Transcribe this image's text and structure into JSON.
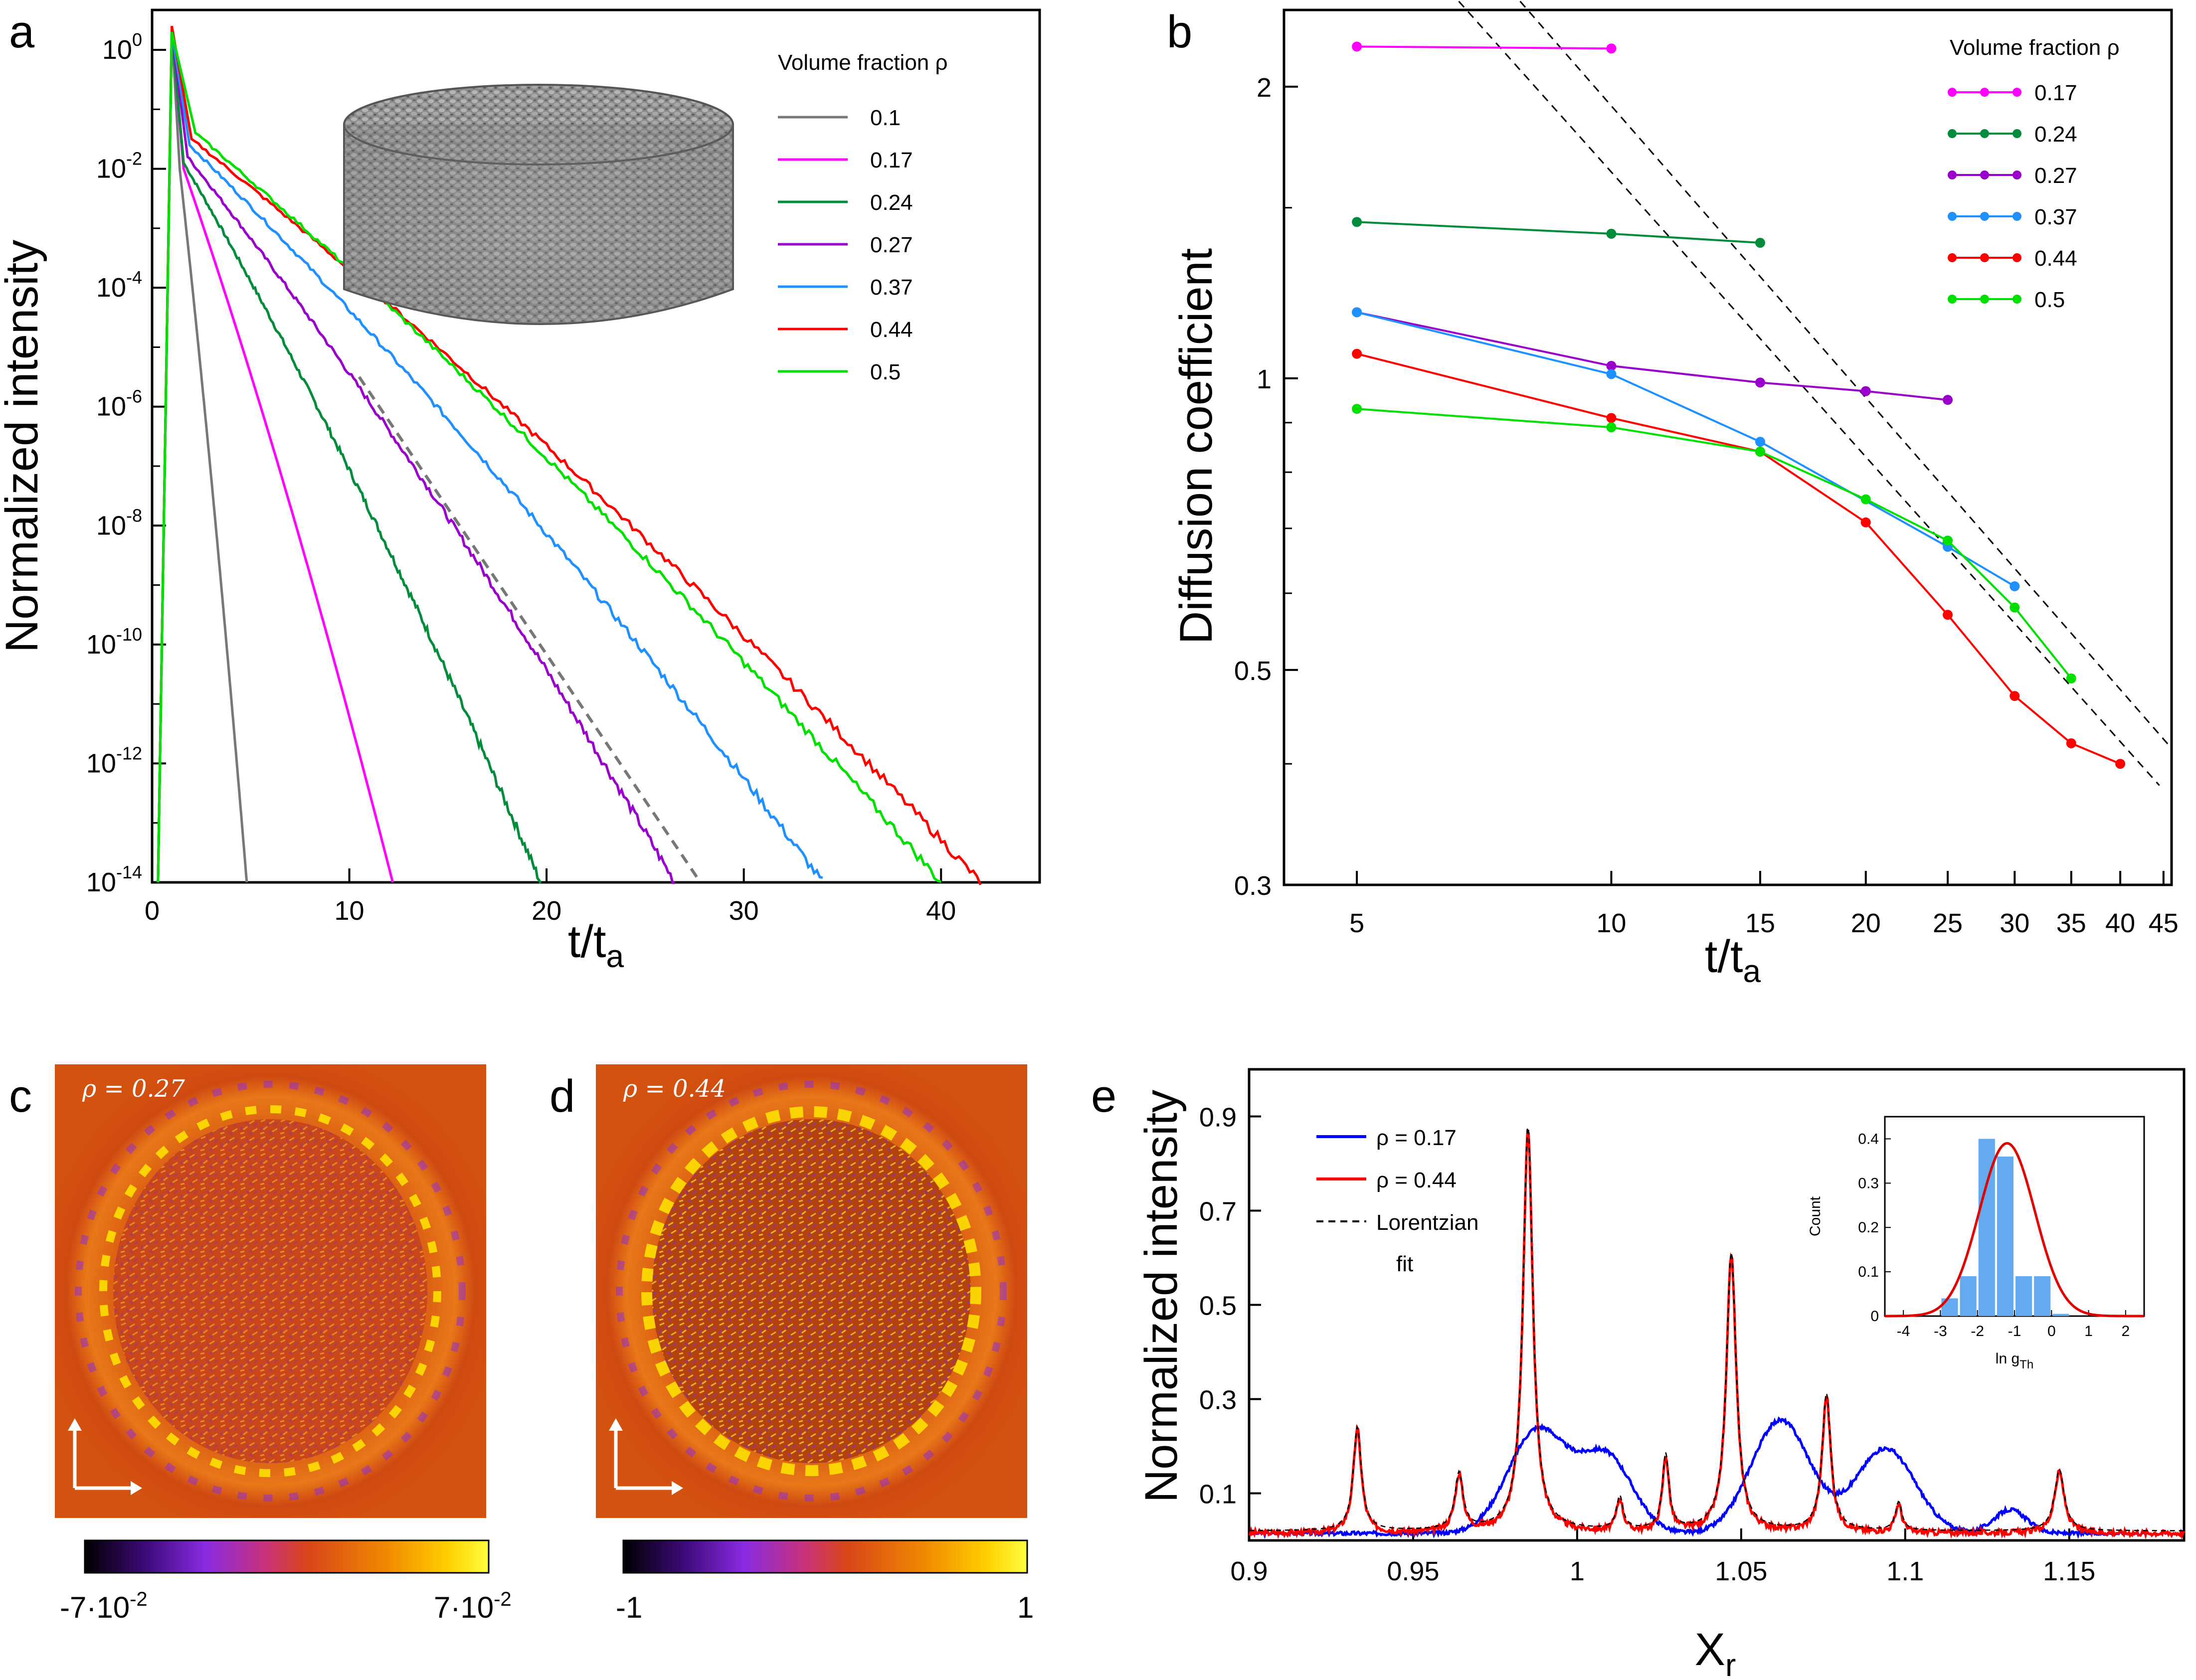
{
  "figure": {
    "panel_letters": [
      "a",
      "b",
      "c",
      "d",
      "e"
    ]
  },
  "chart_data": [
    {
      "id": "a",
      "type": "line",
      "xlabel": "t/t",
      "xlabel_sub": "a",
      "ylabel": "Normalized intensity",
      "yscale": "log",
      "xlim": [
        0,
        45
      ],
      "ylim_exp": [
        -14,
        1
      ],
      "xticks": [
        "0",
        "10",
        "20",
        "30",
        "40"
      ],
      "xtick_values": [
        0,
        10,
        20,
        30,
        40
      ],
      "ytick_exponents": [
        "0",
        "-2",
        "-4",
        "-6",
        "-8",
        "-10",
        "-12",
        "-14"
      ],
      "ytick_base": "10",
      "legend_title": "Volume fraction ρ",
      "series": [
        {
          "name": "0.1",
          "color": "#777777",
          "peak_t": 1.0,
          "peak_exp": 0.35,
          "start_t": 1.4,
          "start_exp": -2.0,
          "end_t": 4.8,
          "end_exp": -14
        },
        {
          "name": "0.17",
          "color": "#ff00ff",
          "peak_t": 1.0,
          "peak_exp": 0.3,
          "start_t": 1.6,
          "start_exp": -2.0,
          "end_t": 12.2,
          "end_exp": -14
        },
        {
          "name": "0.24",
          "color": "#008c3a",
          "peak_t": 1.0,
          "peak_exp": 0.3,
          "start_t": 1.6,
          "start_exp": -1.9,
          "end_t": 19.7,
          "end_exp": -14
        },
        {
          "name": "0.27",
          "color": "#9900cc",
          "peak_t": 1.0,
          "peak_exp": 0.3,
          "start_t": 1.8,
          "start_exp": -1.8,
          "end_t": 26.5,
          "end_exp": -14
        },
        {
          "name": "0.37",
          "color": "#1e90ff",
          "peak_t": 1.0,
          "peak_exp": 0.3,
          "start_t": 1.9,
          "start_exp": -1.6,
          "end_t": 34.0,
          "end_exp": -14
        },
        {
          "name": "0.44",
          "color": "#ff0000",
          "peak_t": 1.0,
          "peak_exp": 0.4,
          "start_t": 2.0,
          "start_exp": -1.5,
          "end_t": 42.0,
          "end_exp": -14
        },
        {
          "name": "0.5",
          "color": "#00e000",
          "peak_t": 1.0,
          "peak_exp": 0.3,
          "start_t": 2.2,
          "start_exp": -1.4,
          "end_t": 40.0,
          "end_exp": -14
        }
      ],
      "fit_line": {
        "t0": 10.5,
        "exp0": -5.5,
        "t1": 27.8,
        "exp1": -14
      }
    },
    {
      "id": "b",
      "type": "line",
      "xlabel": "t/t",
      "xlabel_sub": "a",
      "ylabel": "Diffusion coefficient",
      "xscale": "log",
      "yscale": "log",
      "xlim": [
        4.1,
        46
      ],
      "ylim": [
        0.3,
        2.4
      ],
      "xticks": [
        "5",
        "10",
        "15",
        "20",
        "25",
        "30",
        "35",
        "40",
        "45"
      ],
      "xtick_values": [
        5,
        10,
        15,
        20,
        25,
        30,
        35,
        40,
        45
      ],
      "yticks": [
        "0.3",
        "0.5",
        "1",
        "2"
      ],
      "ytick_values": [
        0.3,
        0.5,
        1,
        2
      ],
      "legend_title": "Volume fraction ρ",
      "series": [
        {
          "name": "0.17",
          "color": "#ff00ff",
          "x": [
            5,
            10
          ],
          "y": [
            2.2,
            2.19
          ]
        },
        {
          "name": "0.24",
          "color": "#008c3a",
          "x": [
            5,
            10,
            15
          ],
          "y": [
            1.45,
            1.41,
            1.38
          ]
        },
        {
          "name": "0.27",
          "color": "#9900cc",
          "x": [
            5,
            10,
            15,
            20,
            25
          ],
          "y": [
            1.17,
            1.03,
            0.99,
            0.97,
            0.95
          ]
        },
        {
          "name": "0.37",
          "color": "#1e90ff",
          "x": [
            5,
            10,
            15,
            25,
            30
          ],
          "y": [
            1.17,
            1.01,
            0.86,
            0.67,
            0.61
          ]
        },
        {
          "name": "0.44",
          "color": "#ff0000",
          "x": [
            5,
            10,
            15,
            20,
            25,
            30,
            35,
            40
          ],
          "y": [
            1.06,
            0.91,
            0.84,
            0.71,
            0.57,
            0.47,
            0.42,
            0.4
          ]
        },
        {
          "name": "0.5",
          "color": "#00e000",
          "x": [
            5,
            10,
            15,
            20,
            25,
            30,
            35
          ],
          "y": [
            0.93,
            0.89,
            0.84,
            0.75,
            0.68,
            0.58,
            0.49
          ]
        }
      ],
      "fit_lines": [
        {
          "x": [
            6.6,
            44.5
          ],
          "y": [
            2.45,
            0.38
          ]
        },
        {
          "x": [
            7.8,
            46
          ],
          "y": [
            2.45,
            0.415
          ]
        }
      ]
    },
    {
      "id": "e",
      "type": "line",
      "xlabel": "X",
      "xlabel_sub": "r",
      "ylabel": "Normalized intensity",
      "xlim": [
        0.9,
        1.185
      ],
      "ylim": [
        0,
        1.0
      ],
      "xticks": [
        "0.9",
        "0.95",
        "1",
        "1.05",
        "1.1",
        "1.15"
      ],
      "xtick_values": [
        0.9,
        0.95,
        1.0,
        1.05,
        1.1,
        1.15
      ],
      "yticks": [
        "0.1",
        "0.3",
        "0.5",
        "0.7",
        "0.9"
      ],
      "ytick_values": [
        0.1,
        0.3,
        0.5,
        0.7,
        0.9
      ],
      "legend": [
        "ρ = 0.17",
        "ρ = 0.44",
        "Lorentzian",
        "fit"
      ],
      "blue_peaks": [
        {
          "x": 0.988,
          "h": 0.22,
          "w": 0.009
        },
        {
          "x": 1.009,
          "h": 0.16,
          "w": 0.008
        },
        {
          "x": 1.062,
          "h": 0.24,
          "w": 0.009
        },
        {
          "x": 1.094,
          "h": 0.18,
          "w": 0.009
        },
        {
          "x": 1.132,
          "h": 0.05,
          "w": 0.005
        }
      ],
      "red_peaks": [
        {
          "x": 0.933,
          "h": 0.22,
          "w": 0.0015
        },
        {
          "x": 0.964,
          "h": 0.12,
          "w": 0.0015
        },
        {
          "x": 0.985,
          "h": 0.86,
          "w": 0.0018
        },
        {
          "x": 1.013,
          "h": 0.07,
          "w": 0.0012
        },
        {
          "x": 1.027,
          "h": 0.16,
          "w": 0.0012
        },
        {
          "x": 1.047,
          "h": 0.59,
          "w": 0.0018
        },
        {
          "x": 1.076,
          "h": 0.29,
          "w": 0.0016
        },
        {
          "x": 1.098,
          "h": 0.06,
          "w": 0.0012
        },
        {
          "x": 1.147,
          "h": 0.13,
          "w": 0.0018
        }
      ],
      "inset": {
        "type": "bar",
        "xlabel": "ln g",
        "xlabel_sub": "Th",
        "ylabel": "Count",
        "xlim": [
          -4.5,
          2.5
        ],
        "ylim": [
          0,
          0.45
        ],
        "xticks": [
          "-4",
          "-3",
          "-2",
          "-1",
          "0",
          "1",
          "2"
        ],
        "xtick_values": [
          -4,
          -3,
          -2,
          -1,
          0,
          1,
          2
        ],
        "yticks": [
          "0",
          "0.1",
          "0.2",
          "0.3",
          "0.4"
        ],
        "ytick_values": [
          0,
          0.1,
          0.2,
          0.3,
          0.4
        ],
        "bins_left": [
          -3,
          -2.5,
          -2,
          -1.5,
          -1,
          -0.5,
          0
        ],
        "bar_width": 0.5,
        "values": [
          0.04,
          0.09,
          0.4,
          0.36,
          0.09,
          0.09,
          0.005
        ],
        "gauss": {
          "mu": -1.2,
          "sigma": 0.75,
          "amp": 0.39
        }
      }
    }
  ],
  "maps": [
    {
      "id": "c",
      "label": "ρ = 0.27",
      "cbar_min": "-7·10",
      "cbar_min_exp": "-2",
      "cbar_max": "7·10",
      "cbar_max_exp": "-2"
    },
    {
      "id": "d",
      "label": "ρ = 0.44",
      "cbar_min": "-1",
      "cbar_max": "1"
    }
  ]
}
